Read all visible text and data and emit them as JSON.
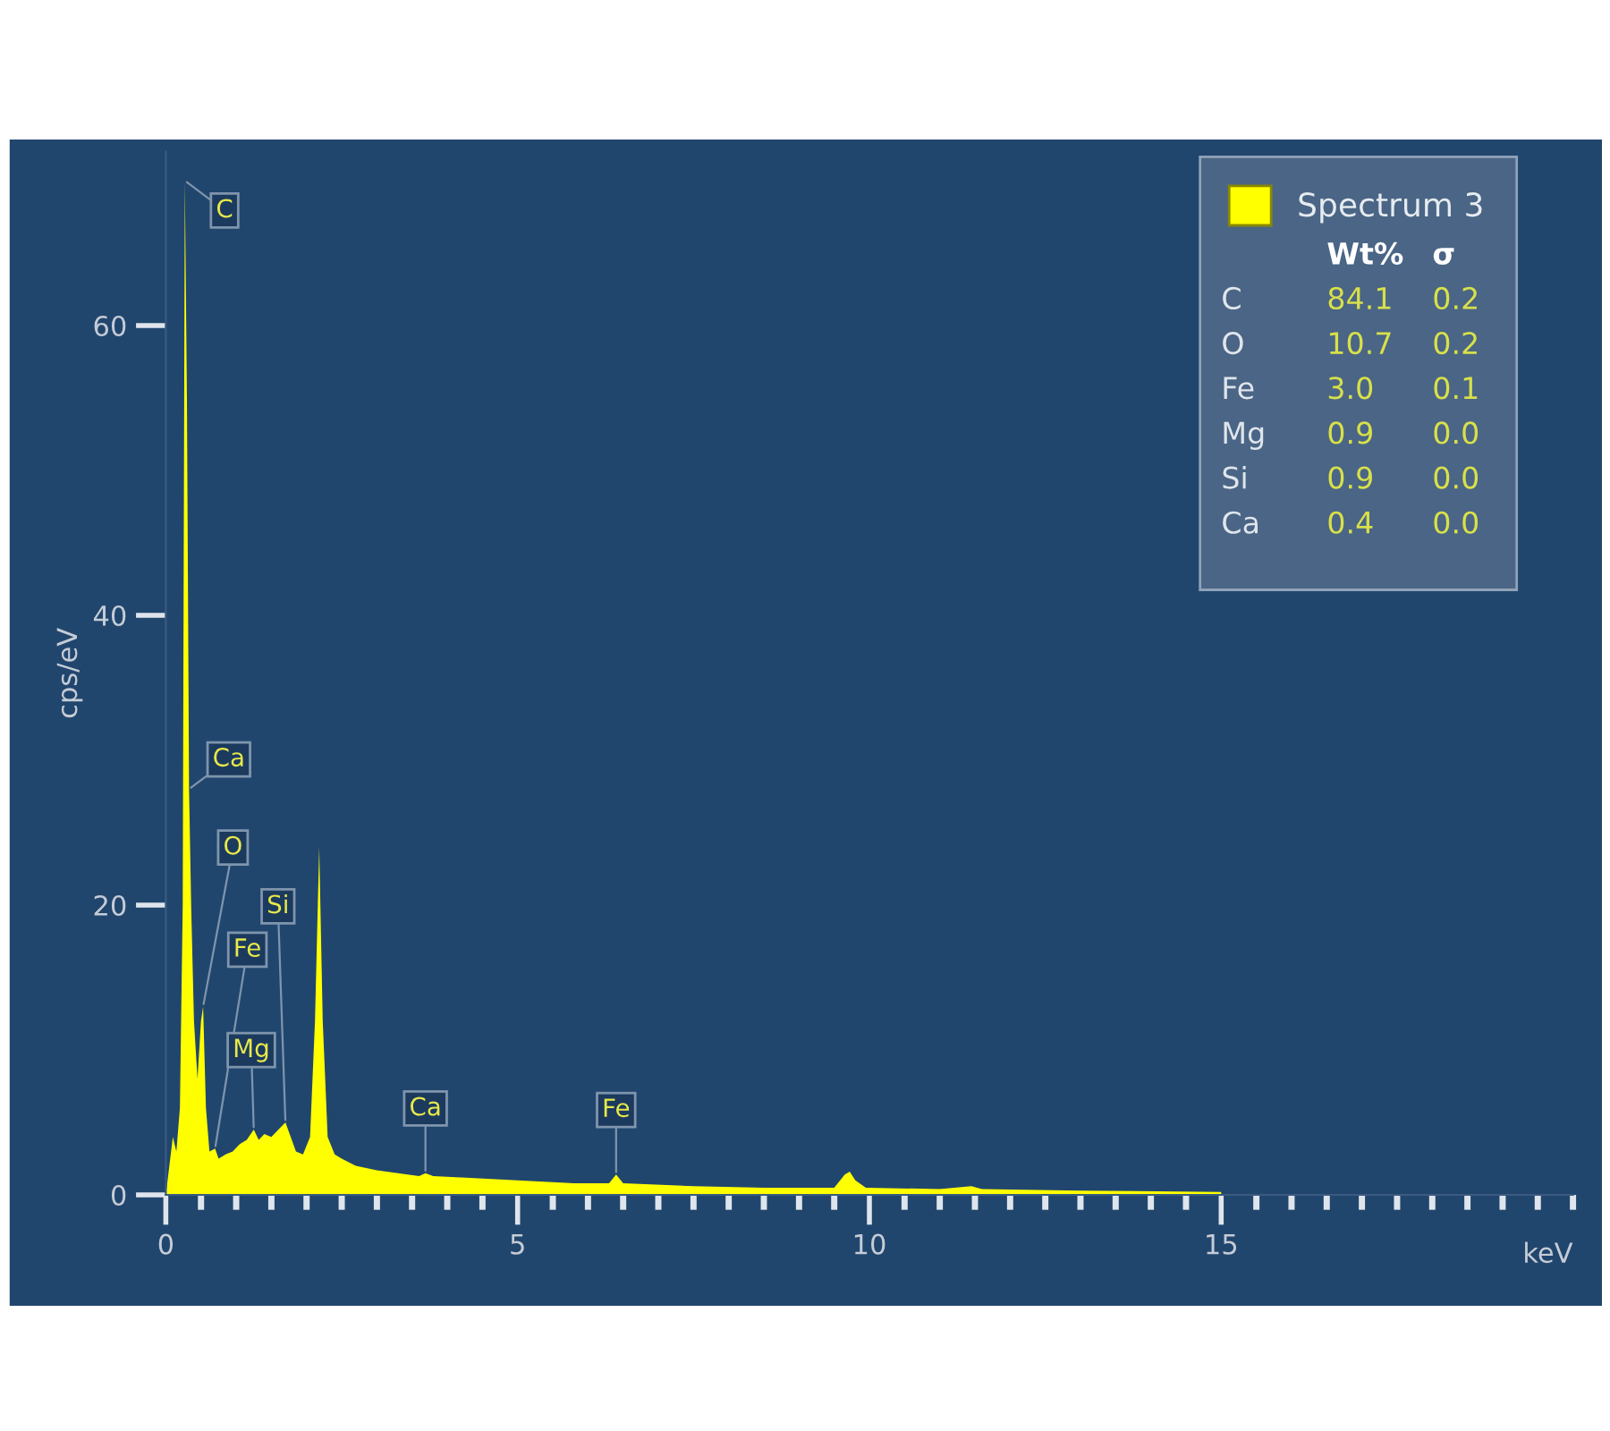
{
  "chart_data": {
    "type": "area",
    "xlabel": "keV",
    "ylabel": "cps/eV",
    "xlim": [
      0,
      20
    ],
    "xticks": [
      0,
      5,
      10,
      15
    ],
    "ylim": [
      0,
      72
    ],
    "yticks": [
      0,
      20,
      40,
      60
    ],
    "grid": false,
    "legend": "top right",
    "series": [
      {
        "name": "Spectrum 3",
        "color": "#ffff00",
        "x": [
          0.0,
          0.05,
          0.1,
          0.15,
          0.2,
          0.24,
          0.27,
          0.3,
          0.33,
          0.36,
          0.4,
          0.45,
          0.5,
          0.53,
          0.57,
          0.62,
          0.7,
          0.75,
          0.85,
          0.95,
          1.05,
          1.15,
          1.25,
          1.32,
          1.4,
          1.5,
          1.6,
          1.7,
          1.76,
          1.85,
          1.95,
          2.05,
          2.12,
          2.18,
          2.23,
          2.3,
          2.4,
          2.5,
          2.7,
          3.0,
          3.3,
          3.6,
          3.69,
          3.8,
          4.2,
          5.0,
          5.8,
          6.3,
          6.4,
          6.5,
          7.5,
          8.5,
          9.5,
          9.65,
          9.72,
          9.8,
          9.95,
          11.0,
          11.45,
          11.6,
          13.0,
          15.0
        ],
        "values": [
          0,
          2,
          4,
          3,
          6,
          20,
          70,
          55,
          28,
          20,
          12,
          8,
          12,
          13,
          6,
          3,
          3.2,
          2.5,
          2.8,
          3.0,
          3.5,
          3.8,
          4.5,
          3.8,
          4.2,
          4.0,
          4.5,
          5.0,
          4.2,
          3.0,
          2.8,
          4,
          12,
          24,
          12,
          4,
          2.8,
          2.5,
          2.0,
          1.7,
          1.5,
          1.3,
          1.5,
          1.3,
          1.2,
          1.0,
          0.8,
          0.8,
          1.4,
          0.8,
          0.6,
          0.5,
          0.5,
          1.4,
          1.6,
          1.0,
          0.5,
          0.4,
          0.6,
          0.4,
          0.3,
          0.2
        ]
      }
    ],
    "annotations": [
      {
        "text": "C",
        "x": 0.27,
        "y": 70
      },
      {
        "text": "Ca",
        "x": 0.33,
        "y": 28
      },
      {
        "text": "O",
        "x": 0.53,
        "y": 13
      },
      {
        "text": "Fe",
        "x": 0.7,
        "y": 3.2
      },
      {
        "text": "Mg",
        "x": 1.25,
        "y": 4.5
      },
      {
        "text": "Si",
        "x": 1.7,
        "y": 5.0
      },
      {
        "text": "Ca",
        "x": 3.69,
        "y": 1.5
      },
      {
        "text": "Fe",
        "x": 6.4,
        "y": 1.4
      },
      "Wt%",
      "σ",
      "C",
      "84.1",
      "0.2",
      "O",
      "10.7",
      "0.2",
      "Fe",
      "3.0",
      "0.1",
      "Mg",
      "0.9",
      "0.0",
      "Si",
      "0.9",
      "0.0",
      "Ca",
      "0.4",
      "0.0"
    ]
  }
}
